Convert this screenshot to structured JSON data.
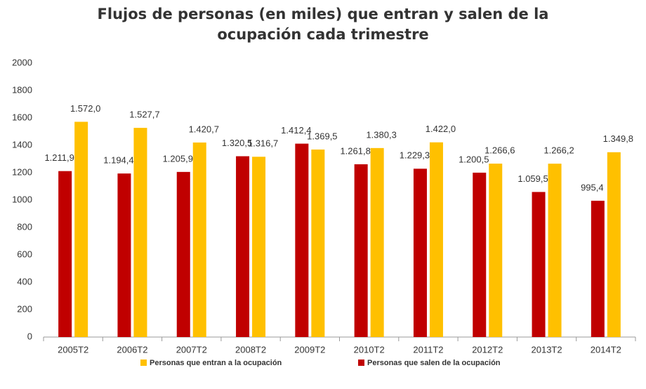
{
  "chart_data": {
    "type": "bar",
    "title": "Flujos de personas (en miles) que entran y salen de la ocupación cada trimestre",
    "categories": [
      "2005T2",
      "2006T2",
      "2007T2",
      "2008T2",
      "2009T2",
      "2010T2",
      "2011T2",
      "2012T2",
      "2013T2",
      "2014T2"
    ],
    "series": [
      {
        "name": "Personas que entran a la ocupación",
        "color": "#ffc000",
        "values": [
          1572.0,
          1527.7,
          1420.7,
          1316.7,
          1369.5,
          1380.3,
          1422.0,
          1266.6,
          1266.2,
          1349.8
        ],
        "value_labels": [
          "1.572,0",
          "1.527,7",
          "1.420,7",
          "1.316,7",
          "1.369,5",
          "1.380,3",
          "1.422,0",
          "1.266,6",
          "1.266,2",
          "1.349,8"
        ]
      },
      {
        "name": "Personas que salen de la ocupación",
        "color": "#c00000",
        "values": [
          1211.9,
          1194.4,
          1205.9,
          1320.5,
          1412.4,
          1261.8,
          1229.3,
          1200.5,
          1059.5,
          995.4
        ],
        "value_labels": [
          "1.211,9",
          "1.194,4",
          "1.205,9",
          "1.320,5",
          "1.412,4",
          "1.261,8",
          "1.229,3",
          "1.200,5",
          "1.059,5",
          "995,4"
        ]
      }
    ],
    "ylim": [
      0,
      2000
    ],
    "yticks": [
      0,
      200,
      400,
      600,
      800,
      1000,
      1200,
      1400,
      1600,
      1800,
      2000
    ],
    "grid": false,
    "legend": "bottom"
  }
}
